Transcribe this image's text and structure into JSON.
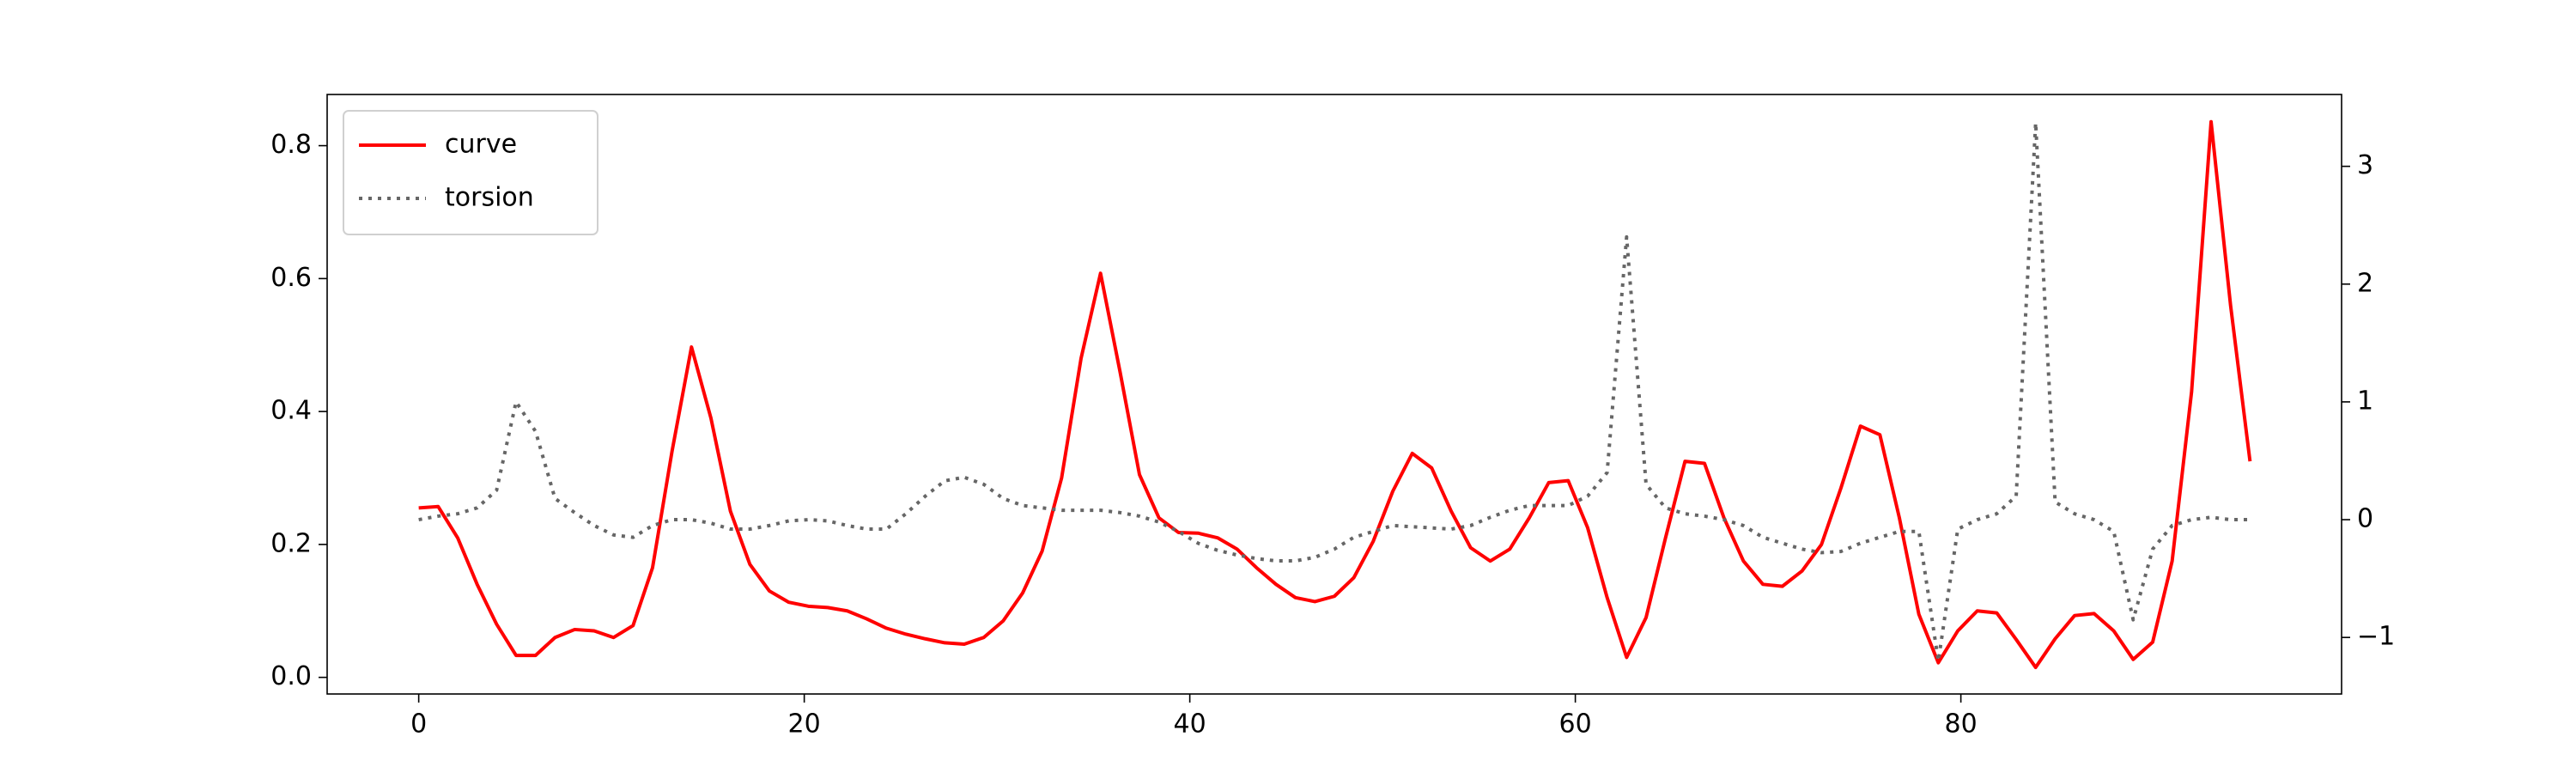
{
  "chart_data": {
    "type": "line",
    "x": [
      0,
      1.01,
      2.02,
      3.03,
      4.04,
      5.05,
      6.06,
      7.07,
      8.09,
      9.1,
      10.11,
      11.12,
      12.13,
      13.14,
      14.15,
      15.16,
      16.17,
      17.18,
      18.19,
      19.2,
      20.21,
      21.22,
      22.23,
      23.24,
      24.26,
      25.27,
      26.28,
      27.29,
      28.3,
      29.31,
      30.32,
      31.33,
      32.34,
      33.35,
      34.36,
      35.37,
      36.38,
      37.39,
      38.4,
      39.41,
      40.43,
      41.44,
      42.45,
      43.46,
      44.47,
      45.48,
      46.49,
      47.5,
      48.51,
      49.52,
      50.53,
      51.54,
      52.55,
      53.56,
      54.57,
      55.59,
      56.6,
      57.61,
      58.62,
      59.63,
      60.64,
      61.65,
      62.66,
      63.67,
      64.68,
      65.69,
      66.7,
      67.71,
      68.72,
      69.73,
      70.74,
      71.76,
      72.77,
      73.78,
      74.79,
      75.8,
      76.81,
      77.82,
      78.83,
      79.84,
      80.85,
      81.86,
      82.87,
      83.88,
      84.89,
      85.9,
      86.91,
      87.93,
      88.94,
      89.95,
      90.96,
      91.97,
      92.98,
      93.99,
      95
    ],
    "series": [
      {
        "name": "curve",
        "color": "#ff0000",
        "dash": "solid",
        "values": [
          0.255,
          0.257,
          0.21,
          0.14,
          0.08,
          0.033,
          0.033,
          0.06,
          0.072,
          0.07,
          0.06,
          0.078,
          0.165,
          0.34,
          0.497,
          0.39,
          0.25,
          0.17,
          0.13,
          0.113,
          0.107,
          0.105,
          0.1,
          0.088,
          0.074,
          0.065,
          0.058,
          0.052,
          0.05,
          0.06,
          0.085,
          0.127,
          0.19,
          0.3,
          0.48,
          0.608,
          0.46,
          0.305,
          0.24,
          0.218,
          0.217,
          0.21,
          0.193,
          0.165,
          0.14,
          0.12,
          0.114,
          0.122,
          0.15,
          0.205,
          0.28,
          0.337,
          0.315,
          0.25,
          0.195,
          0.175,
          0.193,
          0.24,
          0.293,
          0.296,
          0.225,
          0.12,
          0.03,
          0.09,
          0.21,
          0.325,
          0.322,
          0.24,
          0.175,
          0.14,
          0.137,
          0.16,
          0.2,
          0.285,
          0.378,
          0.365,
          0.24,
          0.095,
          0.022,
          0.07,
          0.1,
          0.097,
          0.057,
          0.015,
          0.058,
          0.093,
          0.096,
          0.07,
          0.027,
          0.053,
          0.175,
          0.43,
          0.836,
          0.56,
          0.325
        ]
      },
      {
        "name": "torsion",
        "color": "#666666",
        "dash": "dotted",
        "axis": "y2",
        "values": [
          0,
          0.03,
          0.05,
          0.1,
          0.25,
          1.0,
          0.75,
          0.18,
          0.06,
          -0.05,
          -0.13,
          -0.15,
          -0.05,
          0,
          0,
          -0.03,
          -0.08,
          -0.08,
          -0.05,
          -0.01,
          0,
          -0.01,
          -0.05,
          -0.08,
          -0.08,
          0.05,
          0.2,
          0.33,
          0.36,
          0.3,
          0.18,
          0.12,
          0.1,
          0.08,
          0.08,
          0.08,
          0.06,
          0.03,
          -0.02,
          -0.1,
          -0.2,
          -0.26,
          -0.3,
          -0.33,
          -0.35,
          -0.35,
          -0.32,
          -0.25,
          -0.15,
          -0.1,
          -0.05,
          -0.06,
          -0.07,
          -0.08,
          -0.05,
          0.02,
          0.08,
          0.12,
          0.12,
          0.12,
          0.2,
          0.4,
          2.4,
          0.3,
          0.1,
          0.05,
          0.03,
          0,
          -0.05,
          -0.15,
          -0.2,
          -0.25,
          -0.28,
          -0.27,
          -0.2,
          -0.15,
          -0.1,
          -0.1,
          -1.2,
          -0.08,
          0,
          0.05,
          0.2,
          3.37,
          0.15,
          0.05,
          0,
          -0.1,
          -0.85,
          -0.25,
          -0.05,
          0,
          0.02,
          0,
          0
        ]
      }
    ],
    "xlim": [
      -4.75,
      99.75
    ],
    "xticks": [
      0,
      20,
      40,
      60,
      80
    ],
    "ylim": [
      -0.025,
      0.877
    ],
    "yticks": [
      {
        "value": 0,
        "label": "0.0"
      },
      0.2,
      0.4,
      0.6,
      0.8
    ],
    "y2lim": [
      -1.48,
      3.61
    ],
    "y2ticks": [
      {
        "value": -1,
        "label": "−1"
      },
      0,
      1,
      2,
      3
    ],
    "grid": false,
    "legend": "upper left"
  }
}
